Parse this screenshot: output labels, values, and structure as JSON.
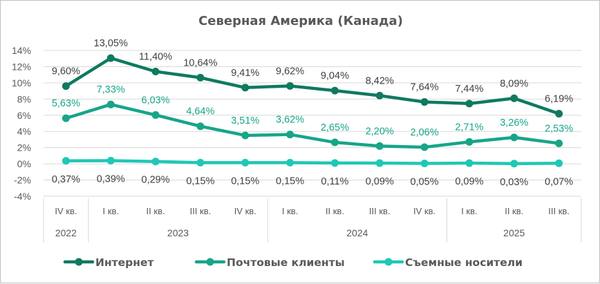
{
  "chart_data": {
    "type": "line",
    "title": "Северная Америка (Канада)",
    "categories": [
      "IV кв.",
      "I кв.",
      "II кв.",
      "III кв.",
      "IV кв.",
      "I кв.",
      "II кв.",
      "III кв.",
      "IV кв.",
      "I кв.",
      "II кв.",
      "III кв."
    ],
    "year_groups": [
      {
        "label": "2022",
        "count": 1
      },
      {
        "label": "2023",
        "count": 4
      },
      {
        "label": "2024",
        "count": 4
      },
      {
        "label": "2025",
        "count": 3
      }
    ],
    "y_ticks": [
      "14%",
      "12%",
      "10%",
      "8%",
      "6%",
      "4%",
      "2%",
      "0%",
      "-2%",
      "-4%"
    ],
    "ylim": [
      -4,
      14
    ],
    "grid": true,
    "legend_position": "bottom",
    "series": [
      {
        "name": "Интернет",
        "color": "#0f7a60",
        "values": [
          9.6,
          13.05,
          11.4,
          10.64,
          9.41,
          9.62,
          9.04,
          8.42,
          7.64,
          7.44,
          8.09,
          6.19
        ],
        "labels": [
          "9,60%",
          "13,05%",
          "11,40%",
          "10,64%",
          "9,41%",
          "9,62%",
          "9,04%",
          "8,42%",
          "7,64%",
          "7,44%",
          "8,09%",
          "6,19%"
        ]
      },
      {
        "name": "Почтовые клиенты",
        "color": "#17a589",
        "values": [
          5.63,
          7.33,
          6.03,
          4.64,
          3.51,
          3.62,
          2.65,
          2.2,
          2.06,
          2.71,
          3.26,
          2.53
        ],
        "labels": [
          "5,63%",
          "7,33%",
          "6,03%",
          "4,64%",
          "3,51%",
          "3,62%",
          "2,65%",
          "2,20%",
          "2,06%",
          "2,71%",
          "3,26%",
          "2,53%"
        ]
      },
      {
        "name": "Съемные носители",
        "color": "#1fc7b6",
        "values": [
          0.37,
          0.39,
          0.29,
          0.15,
          0.15,
          0.15,
          0.11,
          0.09,
          0.05,
          0.09,
          0.03,
          0.07
        ],
        "labels": [
          "0,37%",
          "0,39%",
          "0,29%",
          "0,15%",
          "0,15%",
          "0,15%",
          "0,11%",
          "0,09%",
          "0,05%",
          "0,09%",
          "0,03%",
          "0,07%"
        ]
      }
    ]
  }
}
